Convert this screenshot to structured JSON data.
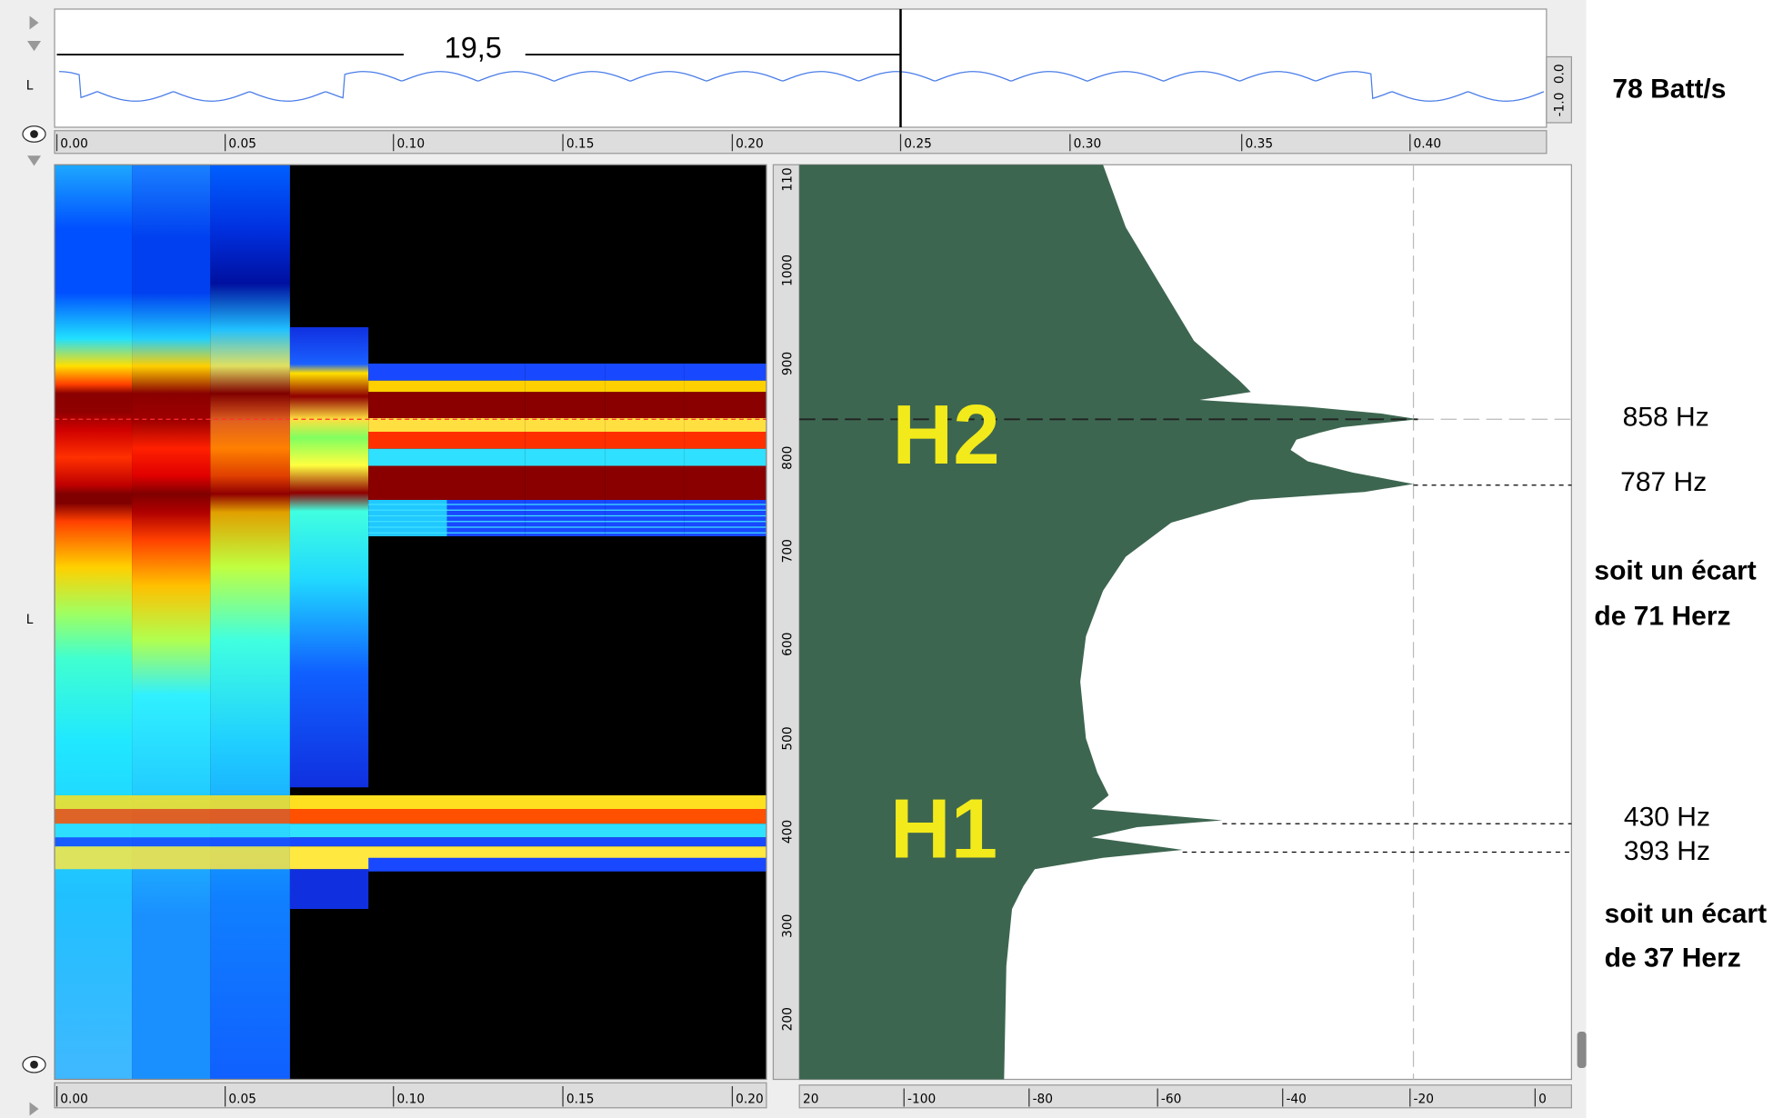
{
  "waveform": {
    "channel": "L",
    "cursor_label": "19,5",
    "amplitude_labels": [
      "0.0",
      "-1.0"
    ],
    "rate_label": "78 Batt/s"
  },
  "top_time_axis": [
    "0.00",
    "0.05",
    "0.10",
    "0.15",
    "0.20",
    "0.25",
    "0.30",
    "0.35",
    "0.40"
  ],
  "spectrogram": {
    "channel": "L",
    "frequency_axis": [
      "110",
      "1000",
      "900",
      "800",
      "700",
      "600",
      "500",
      "400",
      "300",
      "200"
    ],
    "time_axis": [
      "0.00",
      "0.05",
      "0.10",
      "0.15",
      "0.20"
    ]
  },
  "spectrum": {
    "db_axis": [
      "20",
      "-100",
      "-80",
      "-60",
      "-40",
      "-20",
      "0"
    ],
    "peak_labels": [
      "H2",
      "H1"
    ]
  },
  "annotations": {
    "h2_peaks": [
      "858 Hz",
      "787 Hz"
    ],
    "h2_gap": [
      "soit un écart",
      "de 71 Herz"
    ],
    "h1_peaks": [
      "430 Hz",
      "393 Hz"
    ],
    "h1_gap": [
      "soit un écart",
      "de 37 Herz"
    ]
  }
}
